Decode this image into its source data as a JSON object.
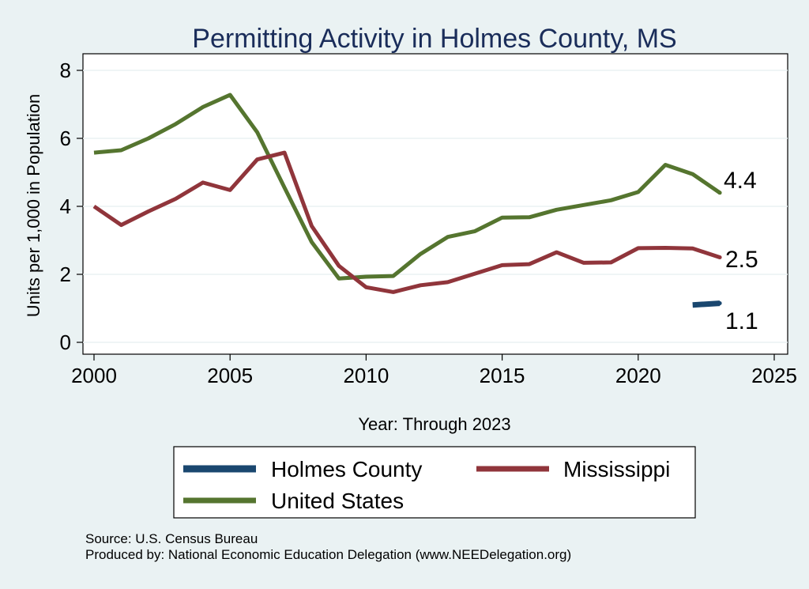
{
  "chart_data": {
    "type": "line",
    "title": "Permitting Activity in Holmes County, MS",
    "xlabel": "Year: Through 2023",
    "ylabel": "Units per 1,000 in Population",
    "xlim": [
      2000,
      2025
    ],
    "ylim": [
      0,
      8
    ],
    "x_ticks": [
      2000,
      2005,
      2010,
      2015,
      2020,
      2025
    ],
    "y_ticks": [
      0,
      2,
      4,
      6,
      8
    ],
    "grid": true,
    "legend_position": "bottom",
    "series": [
      {
        "name": "Holmes County",
        "color": "#1a476f",
        "x": [
          2022,
          2023
        ],
        "values": [
          1.1,
          1.15
        ],
        "end_label": "1.1"
      },
      {
        "name": "Mississippi",
        "color": "#90353b",
        "x": [
          2000,
          2001,
          2002,
          2003,
          2004,
          2005,
          2006,
          2007,
          2008,
          2009,
          2010,
          2011,
          2012,
          2013,
          2014,
          2015,
          2016,
          2017,
          2018,
          2019,
          2020,
          2021,
          2022,
          2023
        ],
        "values": [
          4.0,
          3.45,
          3.85,
          4.22,
          4.7,
          4.48,
          5.38,
          5.58,
          3.42,
          2.25,
          1.62,
          1.48,
          1.68,
          1.77,
          2.02,
          2.27,
          2.3,
          2.65,
          2.34,
          2.35,
          2.77,
          2.78,
          2.76,
          2.5
        ],
        "end_label": "2.5"
      },
      {
        "name": "United States",
        "color": "#55752f",
        "x": [
          2000,
          2001,
          2002,
          2003,
          2004,
          2005,
          2006,
          2007,
          2008,
          2009,
          2010,
          2011,
          2012,
          2013,
          2014,
          2015,
          2016,
          2017,
          2018,
          2019,
          2020,
          2021,
          2022,
          2023
        ],
        "values": [
          5.58,
          5.65,
          6.0,
          6.42,
          6.92,
          7.28,
          6.18,
          4.55,
          2.95,
          1.88,
          1.93,
          1.95,
          2.6,
          3.1,
          3.27,
          3.67,
          3.68,
          3.9,
          4.04,
          4.18,
          4.42,
          5.22,
          4.95,
          4.4
        ],
        "end_label": "4.4"
      }
    ]
  },
  "footer": {
    "source": "Source: U.S. Census Bureau",
    "produced_by": "Produced by: National Economic Education Delegation (www.NEEDelegation.org)"
  }
}
